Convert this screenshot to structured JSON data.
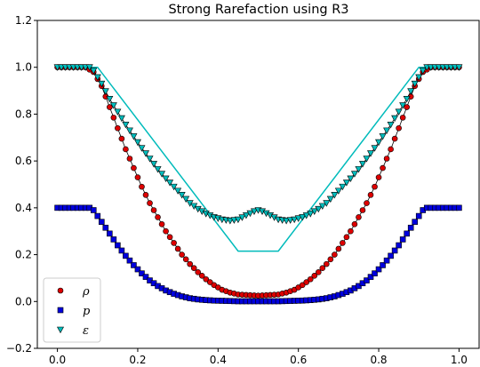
{
  "chart_data": {
    "type": "scatter",
    "title": "Strong Rarefaction using R3",
    "xlabel": "",
    "ylabel": "",
    "xlim": [
      -0.05,
      1.05
    ],
    "ylim": [
      -0.2,
      1.2
    ],
    "xticks": [
      0.0,
      0.2,
      0.4,
      0.6,
      0.8,
      1.0
    ],
    "yticks": [
      -0.2,
      0.0,
      0.2,
      0.4,
      0.6,
      0.8,
      1.0,
      1.2
    ],
    "xtick_labels": [
      "0.0",
      "0.2",
      "0.4",
      "0.6",
      "0.8",
      "1.0"
    ],
    "ytick_labels": [
      "−0.2",
      "0.0",
      "0.2",
      "0.4",
      "0.6",
      "0.8",
      "1.0",
      "1.2"
    ],
    "grid": false,
    "legend_position": "lower-left",
    "series": [
      {
        "name": "ρ",
        "marker": "circle",
        "color": "#dd0000",
        "profile": {
          "x": [
            0.0,
            0.07,
            0.09,
            0.11,
            0.13,
            0.15,
            0.17,
            0.19,
            0.21,
            0.23,
            0.25,
            0.27,
            0.29,
            0.31,
            0.33,
            0.35,
            0.37,
            0.39,
            0.41,
            0.43,
            0.45,
            0.5
          ],
          "y": [
            1.0,
            1.0,
            0.98,
            0.92,
            0.83,
            0.74,
            0.65,
            0.57,
            0.49,
            0.42,
            0.36,
            0.3,
            0.25,
            0.2,
            0.16,
            0.125,
            0.095,
            0.07,
            0.05,
            0.038,
            0.03,
            0.025
          ]
        }
      },
      {
        "name": "p",
        "marker": "square",
        "color": "#0000dd",
        "profile": {
          "x": [
            0.0,
            0.08,
            0.09,
            0.11,
            0.13,
            0.15,
            0.17,
            0.19,
            0.21,
            0.23,
            0.25,
            0.27,
            0.29,
            0.31,
            0.33,
            0.35,
            0.37,
            0.39,
            0.41,
            0.43,
            0.45,
            0.5
          ],
          "y": [
            0.4,
            0.4,
            0.39,
            0.34,
            0.29,
            0.24,
            0.195,
            0.155,
            0.12,
            0.09,
            0.066,
            0.047,
            0.033,
            0.022,
            0.014,
            0.009,
            0.006,
            0.004,
            0.003,
            0.002,
            0.001,
            0.001
          ]
        }
      },
      {
        "name": "ε",
        "marker": "triangle-down",
        "color": "#00bbbb",
        "profile": {
          "x": [
            0.0,
            0.08,
            0.09,
            0.11,
            0.13,
            0.15,
            0.17,
            0.19,
            0.21,
            0.23,
            0.25,
            0.27,
            0.29,
            0.31,
            0.33,
            0.35,
            0.37,
            0.39,
            0.41,
            0.43,
            0.45,
            0.47,
            0.49,
            0.5
          ],
          "y": [
            1.0,
            1.0,
            0.985,
            0.93,
            0.865,
            0.81,
            0.755,
            0.705,
            0.655,
            0.61,
            0.565,
            0.525,
            0.49,
            0.455,
            0.42,
            0.395,
            0.375,
            0.36,
            0.35,
            0.345,
            0.35,
            0.368,
            0.385,
            0.39
          ]
        }
      }
    ],
    "exact_solution": {
      "color": "#00bbbb",
      "x": [
        0.0,
        0.1,
        0.45,
        0.55,
        0.9,
        1.0
      ],
      "y": [
        1.0,
        1.0,
        0.215,
        0.215,
        1.0,
        1.0
      ]
    }
  }
}
